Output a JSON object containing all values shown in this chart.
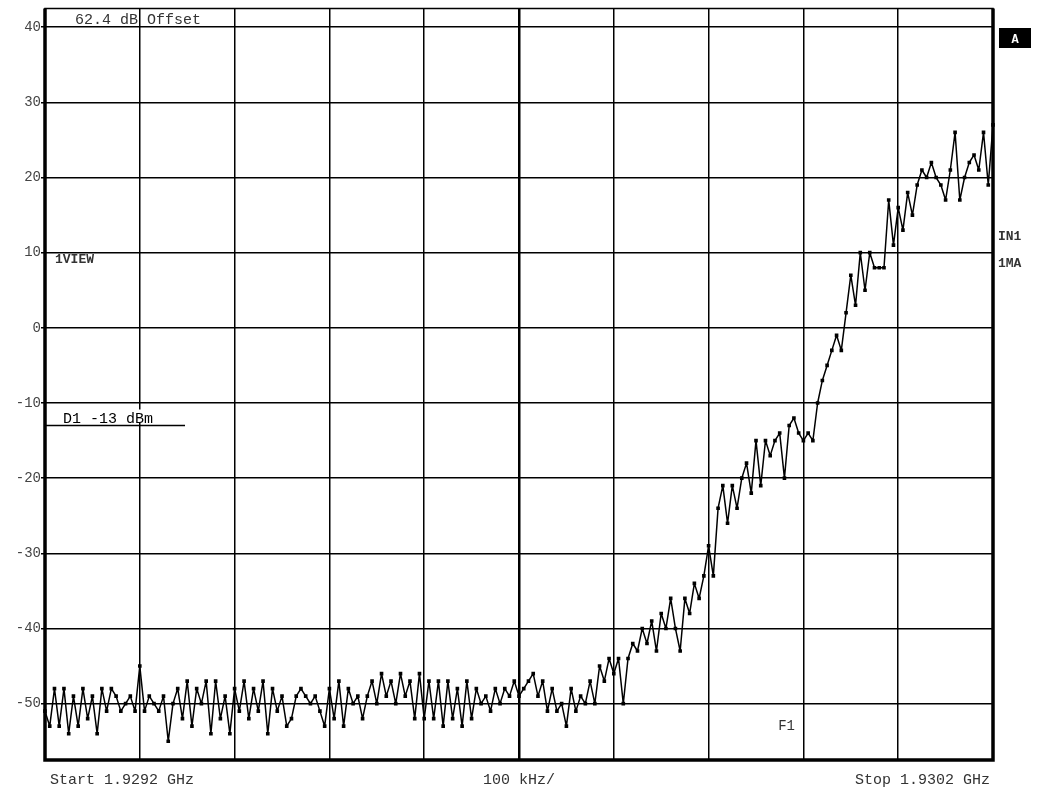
{
  "chart_data": {
    "type": "line",
    "categories": [
      null,
      null,
      null,
      null,
      null,
      null,
      null,
      null,
      null,
      null,
      null,
      null,
      null,
      null,
      null,
      null,
      null,
      null,
      null,
      null,
      null,
      null,
      null,
      null,
      null,
      null,
      null,
      null,
      null,
      null,
      null,
      null,
      null,
      null,
      null,
      null,
      null,
      null,
      null,
      null,
      null,
      null,
      null,
      null,
      null,
      null,
      null,
      null,
      null,
      null,
      null,
      null,
      null,
      null,
      null,
      null,
      null,
      null,
      null,
      null,
      null,
      null,
      null,
      null,
      null,
      null,
      null,
      null,
      null,
      null,
      null,
      null,
      null,
      null,
      null,
      null,
      null,
      null,
      null,
      null,
      null,
      null,
      null,
      null,
      null,
      null,
      null,
      null,
      null,
      null,
      null,
      null,
      null,
      null,
      null,
      null,
      null,
      null,
      null,
      null,
      null,
      null,
      null,
      null,
      null,
      null,
      null,
      null,
      null,
      null,
      null,
      null,
      null,
      null,
      null,
      null,
      null,
      null,
      null,
      null,
      null,
      null,
      null,
      null,
      null,
      null,
      null,
      null,
      null,
      null,
      null,
      null,
      null,
      null,
      null,
      null,
      null,
      null,
      null,
      null,
      null,
      null,
      null,
      null,
      null,
      null,
      null,
      null,
      null,
      null,
      null,
      null,
      null,
      null,
      null,
      null,
      null,
      null,
      null,
      null,
      null,
      null,
      null,
      null,
      null,
      null,
      null,
      null,
      null,
      null,
      null,
      null,
      null,
      null,
      null,
      null,
      null,
      null,
      null,
      null,
      null,
      null,
      null,
      null,
      null,
      null,
      null,
      null,
      null,
      null,
      null,
      null,
      null,
      null,
      null,
      null,
      null,
      null,
      null,
      null,
      null
    ],
    "series": [
      {
        "color": "#000000",
        "values": [
          -51,
          -53,
          -48,
          -53,
          -48,
          -54,
          -49,
          -53,
          -48,
          -52,
          -49,
          -54,
          -48,
          -51,
          -48,
          -49,
          -51,
          -50,
          -49,
          -51,
          -45,
          -51,
          -49,
          -50,
          -51,
          -49,
          -55,
          -50,
          -48,
          -52,
          -47,
          -53,
          -48,
          -50,
          -47,
          -54,
          -47,
          -52,
          -49,
          -54,
          -48,
          -51,
          -47,
          -52,
          -48,
          -51,
          -47,
          -54,
          -48,
          -51,
          -49,
          -53,
          -52,
          -49,
          -48,
          -49,
          -50,
          -49,
          -51,
          -53,
          -48,
          -52,
          -47,
          -53,
          -48,
          -50,
          -49,
          -52,
          -49,
          -47,
          -50,
          -46,
          -49,
          -47,
          -50,
          -46,
          -49,
          -47,
          -52,
          -46,
          -52,
          -47,
          -52,
          -47,
          -53,
          -47,
          -52,
          -48,
          -53,
          -47,
          -52,
          -48,
          -50,
          -49,
          -51,
          -48,
          -50,
          -48,
          -49,
          -47,
          -49,
          -48,
          -47,
          -46,
          -49,
          -47,
          -51,
          -48,
          -51,
          -50,
          -53,
          -48,
          -51,
          -49,
          -50,
          -47,
          -50,
          -45,
          -47,
          -44,
          -46,
          -44,
          -50,
          -44,
          -42,
          -43,
          -40,
          -42,
          -39,
          -43,
          -38,
          -40,
          -36,
          -40,
          -43,
          -36,
          -38,
          -34,
          -36,
          -33,
          -29,
          -33,
          -24,
          -21,
          -26,
          -21,
          -24,
          -20,
          -18,
          -22,
          -15,
          -21,
          -15,
          -17,
          -15,
          -14,
          -20,
          -13,
          -12,
          -14,
          -15,
          -14,
          -15,
          -10,
          -7,
          -5,
          -3,
          -1,
          -3,
          2,
          7,
          3,
          10,
          5,
          10,
          8,
          8,
          8,
          17,
          11,
          16,
          13,
          18,
          15,
          19,
          21,
          20,
          22,
          20,
          19,
          17,
          21,
          26,
          17,
          20,
          22,
          23,
          21,
          26,
          19,
          27
        ]
      }
    ],
    "ylim": [
      -57.5,
      42.5
    ],
    "yticks": [
      -50,
      -40,
      -30,
      -20,
      -10,
      0,
      10,
      20,
      30,
      40
    ],
    "grid": true,
    "legend": false,
    "marker": "square",
    "tick_labels": "y",
    "ref_lines": [
      {
        "axis": "y",
        "value": -13,
        "label": "D1 -13 dBm"
      }
    ],
    "annotations": [
      "62.4 dB Offset",
      "1VIEW",
      "F1",
      "A",
      "IN1",
      "1MA",
      "Start 1.9292 GHz",
      "100 kHz/",
      "Stop 1.9302 GHz"
    ]
  }
}
